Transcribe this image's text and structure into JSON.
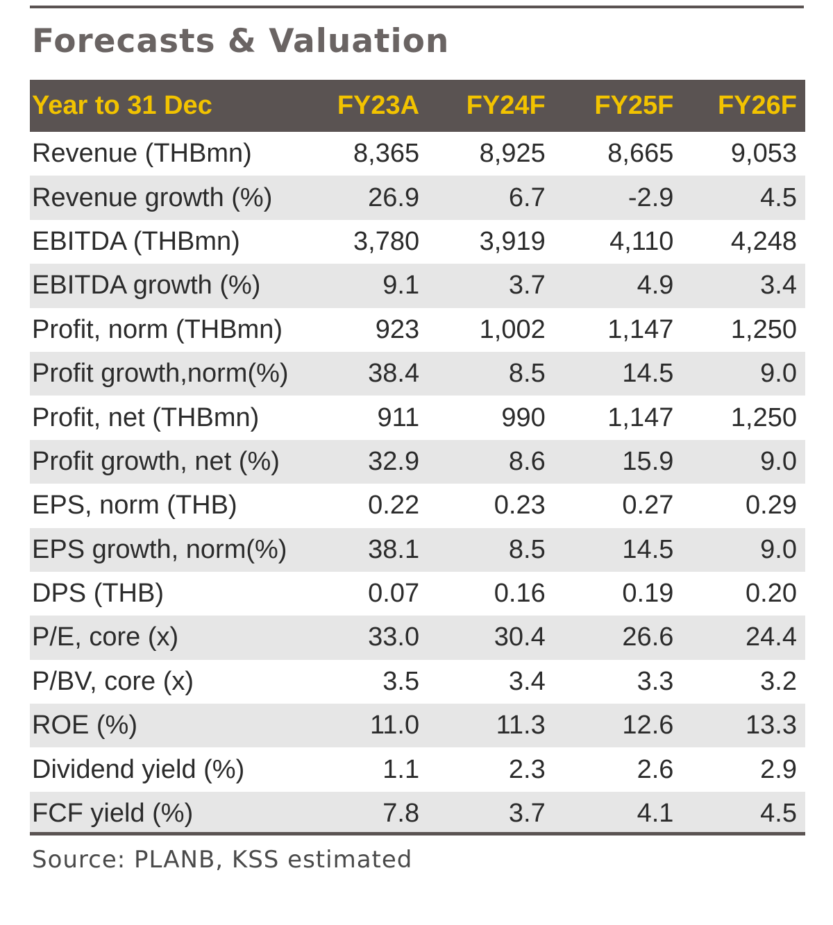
{
  "title": "Forecasts & Valuation",
  "table": {
    "columns": [
      "Year to 31 Dec",
      "FY23A",
      "FY24F",
      "FY25F",
      "FY26F"
    ],
    "rows": [
      {
        "label": "Revenue (THBmn)",
        "values": [
          "8,365",
          "8,925",
          "8,665",
          "9,053"
        ]
      },
      {
        "label": "Revenue growth (%)",
        "values": [
          "26.9",
          "6.7",
          "-2.9",
          "4.5"
        ]
      },
      {
        "label": "EBITDA (THBmn)",
        "values": [
          "3,780",
          "3,919",
          "4,110",
          "4,248"
        ]
      },
      {
        "label": "EBITDA growth (%)",
        "values": [
          "9.1",
          "3.7",
          "4.9",
          "3.4"
        ]
      },
      {
        "label": "Profit, norm (THBmn)",
        "values": [
          "923",
          "1,002",
          "1,147",
          "1,250"
        ]
      },
      {
        "label": "Profit growth,norm(%)",
        "values": [
          "38.4",
          "8.5",
          "14.5",
          "9.0"
        ]
      },
      {
        "label": "Profit, net (THBmn)",
        "values": [
          "911",
          "990",
          "1,147",
          "1,250"
        ]
      },
      {
        "label": "Profit growth, net (%)",
        "values": [
          "32.9",
          "8.6",
          "15.9",
          "9.0"
        ]
      },
      {
        "label": "EPS, norm (THB)",
        "values": [
          "0.22",
          "0.23",
          "0.27",
          "0.29"
        ]
      },
      {
        "label": "EPS growth, norm(%)",
        "values": [
          "38.1",
          "8.5",
          "14.5",
          "9.0"
        ]
      },
      {
        "label": "DPS (THB)",
        "values": [
          "0.07",
          "0.16",
          "0.19",
          "0.20"
        ]
      },
      {
        "label": "P/E, core (x)",
        "values": [
          "33.0",
          "30.4",
          "26.6",
          "24.4"
        ]
      },
      {
        "label": "P/BV, core (x)",
        "values": [
          "3.5",
          "3.4",
          "3.3",
          "3.2"
        ]
      },
      {
        "label": "ROE (%)",
        "values": [
          "11.0",
          "11.3",
          "12.6",
          "13.3"
        ]
      },
      {
        "label": "Dividend yield (%)",
        "values": [
          "1.1",
          "2.3",
          "2.6",
          "2.9"
        ]
      },
      {
        "label": "FCF yield (%)",
        "values": [
          "7.8",
          "3.7",
          "4.1",
          "4.5"
        ]
      }
    ]
  },
  "source": "Source: PLANB, KSS estimated",
  "colors": {
    "header_bg": "#5a5352",
    "header_text": "#f2c300",
    "stripe": "#e6e6e6",
    "text": "#2b2b2b"
  }
}
